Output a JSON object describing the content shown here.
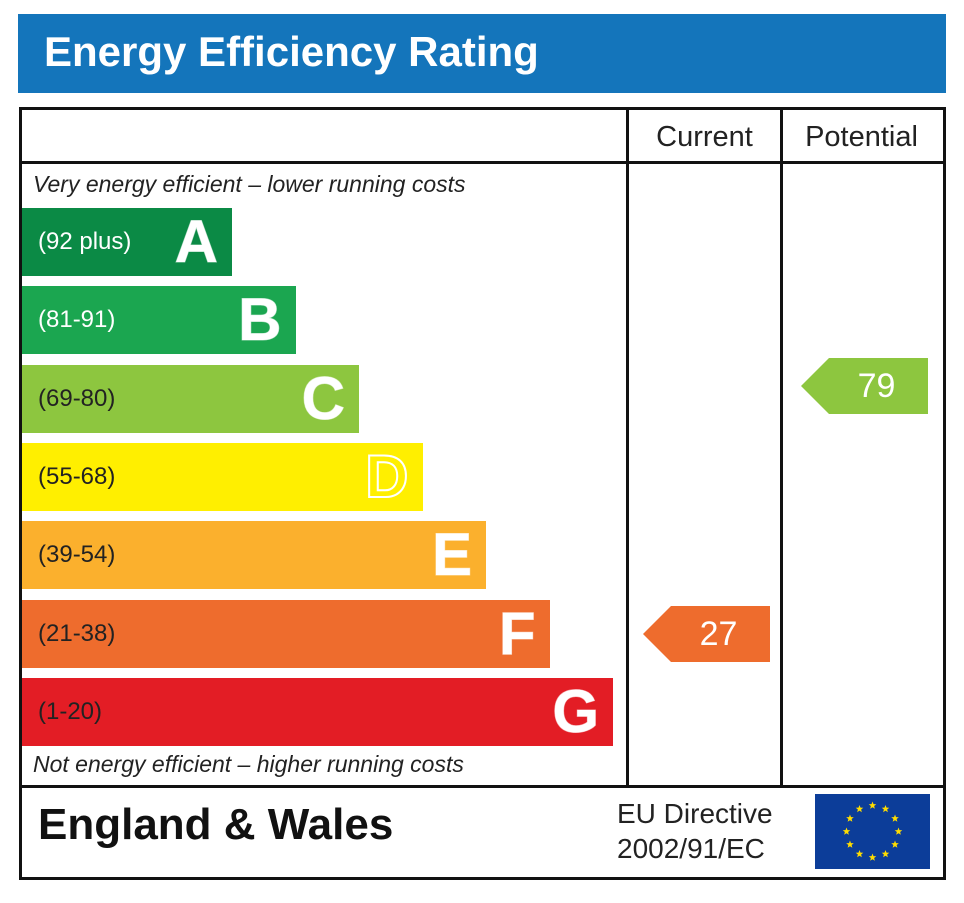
{
  "title": "Energy Efficiency Rating",
  "columns": {
    "current": "Current",
    "potential": "Potential"
  },
  "captions": {
    "top": "Very energy efficient – lower running costs",
    "bottom": "Not energy efficient – higher running costs"
  },
  "footer": {
    "region": "England & Wales",
    "directive_line1": "EU Directive",
    "directive_line2": "2002/91/EC"
  },
  "chart_data": {
    "type": "bar",
    "categories": [
      "A",
      "B",
      "C",
      "D",
      "E",
      "F",
      "G"
    ],
    "bands": [
      {
        "letter": "A",
        "range": "(92 plus)",
        "min": 92,
        "max": null,
        "color": "#0b8a45",
        "range_text_color": "#ffffff",
        "letter_outline": false
      },
      {
        "letter": "B",
        "range": "(81-91)",
        "min": 81,
        "max": 91,
        "color": "#1ba650",
        "range_text_color": "#ffffff",
        "letter_outline": false
      },
      {
        "letter": "C",
        "range": "(69-80)",
        "min": 69,
        "max": 80,
        "color": "#8dc63f",
        "range_text_color": "#222222",
        "letter_outline": false
      },
      {
        "letter": "D",
        "range": "(55-68)",
        "min": 55,
        "max": 68,
        "color": "#ffef00",
        "range_text_color": "#222222",
        "letter_outline": true
      },
      {
        "letter": "E",
        "range": "(39-54)",
        "min": 39,
        "max": 54,
        "color": "#fbb02d",
        "range_text_color": "#222222",
        "letter_outline": false
      },
      {
        "letter": "F",
        "range": "(21-38)",
        "min": 21,
        "max": 38,
        "color": "#ee6c2d",
        "range_text_color": "#222222",
        "letter_outline": false
      },
      {
        "letter": "G",
        "range": "(1-20)",
        "min": 1,
        "max": 20,
        "color": "#e31d25",
        "range_text_color": "#222222",
        "letter_outline": false
      }
    ],
    "ratings": {
      "current": {
        "value": 27,
        "band": "F",
        "color": "#ee6c2d"
      },
      "potential": {
        "value": 79,
        "band": "C",
        "color": "#8dc63f"
      }
    }
  }
}
